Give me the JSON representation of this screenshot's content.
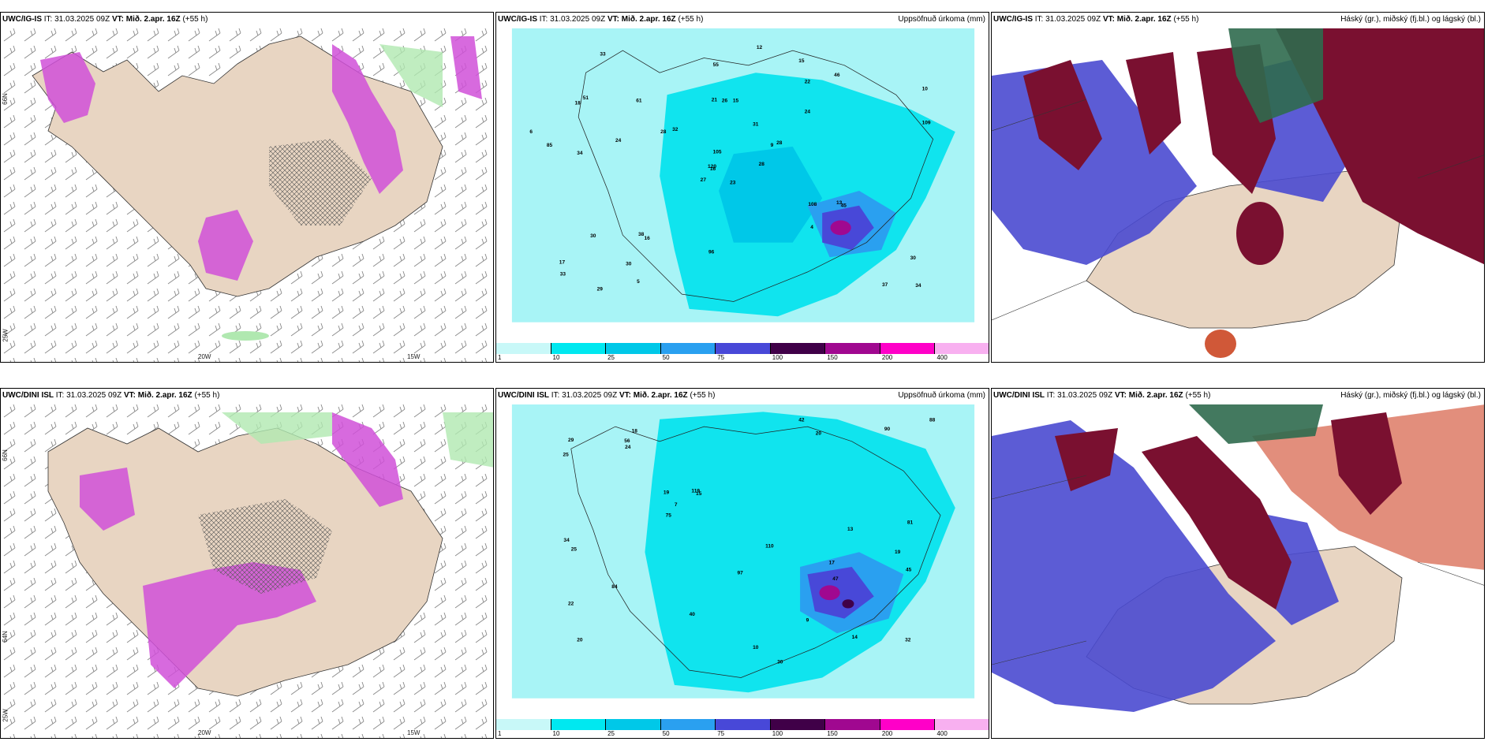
{
  "panels": [
    {
      "id": "tl",
      "model": "UWC/IG-IS",
      "it": "IT: 31.03.2025 09Z",
      "vt_label": "VT:",
      "vt": "Mið. 2.apr. 16Z",
      "lead": "(+55 h)",
      "right": ""
    },
    {
      "id": "tm",
      "model": "UWC/IG-IS",
      "it": "IT: 31.03.2025 09Z",
      "vt_label": "VT:",
      "vt": "Mið. 2.apr. 16Z",
      "lead": "(+55 h)",
      "right": "Uppsöfnuð úrkoma (mm)"
    },
    {
      "id": "tr",
      "model": "UWC/IG-IS",
      "it": "IT: 31.03.2025 09Z",
      "vt_label": "VT:",
      "vt": "Mið. 2.apr. 16Z",
      "lead": "(+55 h)",
      "right": "Háský (gr.), miðský (fj.bl.) og lágský (bl.)"
    },
    {
      "id": "bl",
      "model": "UWC/DINI ISL",
      "it": "IT: 31.03.2025 09Z",
      "vt_label": "VT:",
      "vt": "Mið. 2.apr. 16Z",
      "lead": "(+55 h)",
      "right": ""
    },
    {
      "id": "bm",
      "model": "UWC/DINI ISL",
      "it": "IT: 31.03.2025 09Z",
      "vt_label": "VT:",
      "vt": "Mið. 2.apr. 16Z",
      "lead": "(+55 h)",
      "right": "Uppsöfnuð úrkoma (mm)"
    },
    {
      "id": "br",
      "model": "UWC/DINI ISL",
      "it": "IT: 31.03.2025 09Z",
      "vt_label": "VT:",
      "vt": "Mið. 2.apr. 16Z",
      "lead": "(+55 h)",
      "right": "Háský (gr.), miðský (fj.bl.) og lágský (bl.)"
    }
  ],
  "axes": {
    "lon1": "20W",
    "lon2": "15W",
    "lat1": "66N",
    "lat2": "64N",
    "lat3": "25W"
  },
  "colorbar": {
    "ticks": [
      "1",
      "10",
      "25",
      "50",
      "75",
      "100",
      "150",
      "200",
      "400"
    ],
    "colors": [
      "#c8f8f8",
      "#00e8f0",
      "#00c8e8",
      "#2aa0f0",
      "#4848d8",
      "#400048",
      "#a00890",
      "#ff00c8",
      "#f8b0f0"
    ]
  },
  "precip_labels_top": [
    "23",
    "18",
    "16",
    "17",
    "9",
    "16",
    "15",
    "15",
    "22",
    "28",
    "33",
    "34",
    "34",
    "10",
    "27",
    "24",
    "29",
    "21",
    "31",
    "30",
    "32",
    "33",
    "30",
    "26",
    "28",
    "45",
    "51",
    "55",
    "85",
    "108",
    "109",
    "120",
    "96",
    "105",
    "61",
    "46",
    "38",
    "37",
    "30",
    "13",
    "12",
    "28",
    "24",
    "4",
    "5",
    "6"
  ],
  "precip_labels_bot": [
    "17",
    "19",
    "20",
    "18",
    "15",
    "14",
    "22",
    "20",
    "19",
    "30",
    "25",
    "34",
    "29",
    "32",
    "40",
    "81",
    "97",
    "110",
    "119",
    "84",
    "88",
    "90",
    "75",
    "45",
    "42",
    "56",
    "47",
    "25",
    "24",
    "13",
    "10",
    "9",
    "7"
  ],
  "colors": {
    "land": "#e8d5c2",
    "wind": "#777777",
    "precip_bg": "#a8f4f6",
    "cyan": "#10e4ee",
    "magenta": "#d050d8",
    "green": "#b0e8b0",
    "high_cloud": "#7a1030",
    "mid_cloud": "#4a4ad0",
    "low_cloud": "#d05838"
  }
}
